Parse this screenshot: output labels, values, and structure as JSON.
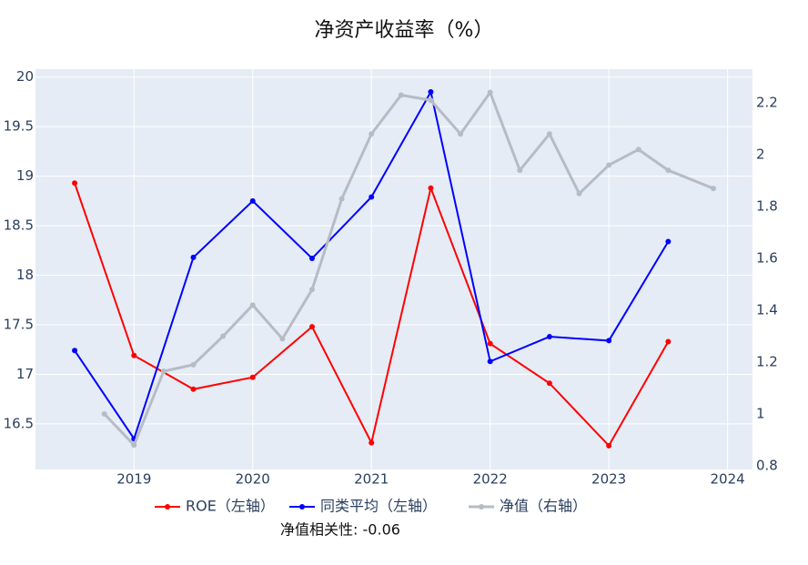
{
  "chart_data": {
    "type": "line",
    "title": "净资产收益率（%）",
    "annotation": "净值相关性: -0.06",
    "xlim": [
      2018.17,
      2024.21
    ],
    "xticks": [
      2019,
      2020,
      2021,
      2022,
      2023,
      2024
    ],
    "ylim": [
      16.04,
      20.08
    ],
    "yticks": [
      16.5,
      17,
      17.5,
      18,
      18.5,
      19,
      19.5,
      20
    ],
    "y2lim": [
      0.786,
      2.33
    ],
    "y2ticks": [
      0.8,
      1,
      1.2,
      1.4,
      1.6,
      1.8,
      2,
      2.2
    ],
    "grid": true,
    "legend": "bottom",
    "series": [
      {
        "name": "ROE（左轴）",
        "color": "#ff0000",
        "x": [
          2018.5,
          2019,
          2019.5,
          2020,
          2020.5,
          2021,
          2021.5,
          2022,
          2022.5,
          2023,
          2023.5
        ],
        "values": [
          18.93,
          17.19,
          16.85,
          16.97,
          17.48,
          16.31,
          18.88,
          17.31,
          16.91,
          16.28,
          17.33
        ]
      },
      {
        "name": "同类平均（左轴）",
        "color": "#0000ff",
        "x": [
          2018.5,
          2019,
          2019.5,
          2020,
          2020.5,
          2021,
          2021.5,
          2022,
          2022.5,
          2023,
          2023.5
        ],
        "values": [
          17.24,
          16.35,
          18.18,
          18.75,
          18.17,
          18.79,
          19.85,
          17.13,
          17.38,
          17.34,
          18.34
        ]
      },
      {
        "name": "净值（右轴）",
        "color": "#b6bcc6",
        "axis": "y2",
        "x": [
          2018.75,
          2019,
          2019.25,
          2019.5,
          2019.75,
          2020,
          2020.25,
          2020.5,
          2020.75,
          2021,
          2021.25,
          2021.5,
          2021.75,
          2022,
          2022.25,
          2022.5,
          2022.75,
          2023,
          2023.25,
          2023.5,
          2023.88
        ],
        "values": [
          1.0,
          0.88,
          1.165,
          1.19,
          1.3,
          1.42,
          1.29,
          1.48,
          1.83,
          2.08,
          2.23,
          2.21,
          2.08,
          2.24,
          1.94,
          2.08,
          1.85,
          1.96,
          2.02,
          1.94,
          1.87
        ]
      }
    ]
  }
}
